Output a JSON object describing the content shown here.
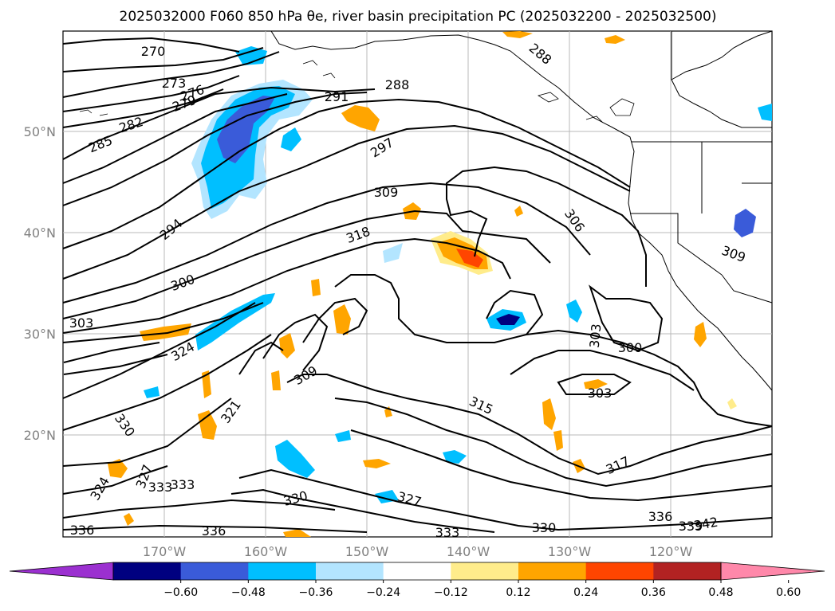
{
  "title": "2025032000 F060 850 hPa θe, river basin precipitation PC (2025032200 - 2025032500)",
  "map": {
    "lon_labels": [
      "170°W",
      "160°W",
      "150°W",
      "140°W",
      "130°W",
      "120°W"
    ],
    "lat_labels": [
      "50°N",
      "40°N",
      "30°N",
      "20°N"
    ],
    "contour_labels": [
      "270",
      "273",
      "276",
      "279",
      "282",
      "285",
      "288",
      "291",
      "294",
      "297",
      "300",
      "303",
      "306",
      "309",
      "315",
      "317",
      "318",
      "321",
      "324",
      "327",
      "330",
      "333",
      "336",
      "339",
      "342"
    ],
    "contour_color": "#000000",
    "grid_color": "#b0b0b0"
  },
  "colorbar": {
    "ticks": [
      "−0.60",
      "−0.48",
      "−0.36",
      "−0.24",
      "−0.12",
      "0.12",
      "0.24",
      "0.36",
      "0.48",
      "0.60"
    ],
    "colors": [
      "#9b30d0",
      "#000080",
      "#3a5bd9",
      "#00bfff",
      "#b3e5ff",
      "#ffffff",
      "#ffec8b",
      "#ffa500",
      "#ff4500",
      "#b22222",
      "#ff88aa"
    ]
  }
}
